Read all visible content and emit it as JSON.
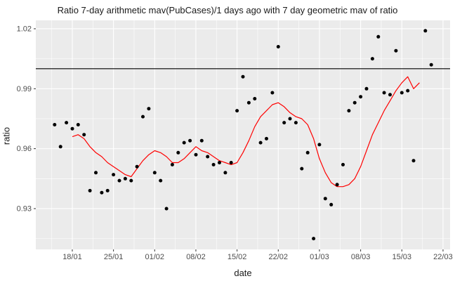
{
  "title": "Ratio 7-day arithmetic mav(PubCases)/1 days ago with 7 day geometric mav of ratio",
  "chart_data": {
    "type": "scatter",
    "title": "Ratio 7-day arithmetic mav(PubCases)/1 days ago with 7 day geometric mav of ratio",
    "xlabel": "date",
    "ylabel": "ratio",
    "x_origin_date": "15/01",
    "xlim": [
      -3.2,
      67.2
    ],
    "ylim": [
      0.9096,
      1.0242
    ],
    "x_ticks": [
      {
        "label": "18/01",
        "d": 3
      },
      {
        "label": "25/01",
        "d": 10
      },
      {
        "label": "01/02",
        "d": 17
      },
      {
        "label": "08/02",
        "d": 24
      },
      {
        "label": "15/02",
        "d": 31
      },
      {
        "label": "22/02",
        "d": 38
      },
      {
        "label": "01/03",
        "d": 45
      },
      {
        "label": "08/03",
        "d": 52
      },
      {
        "label": "15/03",
        "d": 59
      },
      {
        "label": "22/03",
        "d": 66
      }
    ],
    "y_ticks": [
      {
        "label": "0.93",
        "v": 0.93
      },
      {
        "label": "0.96",
        "v": 0.96
      },
      {
        "label": "0.99",
        "v": 0.99
      },
      {
        "label": "1.02",
        "v": 1.02
      }
    ],
    "reference_hline": 1.0,
    "points": [
      [
        0,
        0.972
      ],
      [
        1,
        0.961
      ],
      [
        2,
        0.973
      ],
      [
        3,
        0.97
      ],
      [
        4,
        0.972
      ],
      [
        5,
        0.967
      ],
      [
        6,
        0.939
      ],
      [
        7,
        0.948
      ],
      [
        8,
        0.938
      ],
      [
        9,
        0.939
      ],
      [
        10,
        0.947
      ],
      [
        11,
        0.944
      ],
      [
        12,
        0.945
      ],
      [
        13,
        0.944
      ],
      [
        14,
        0.951
      ],
      [
        15,
        0.976
      ],
      [
        16,
        0.98
      ],
      [
        17,
        0.948
      ],
      [
        18,
        0.944
      ],
      [
        19,
        0.93
      ],
      [
        20,
        0.952
      ],
      [
        21,
        0.958
      ],
      [
        22,
        0.963
      ],
      [
        23,
        0.964
      ],
      [
        24,
        0.957
      ],
      [
        25,
        0.964
      ],
      [
        26,
        0.956
      ],
      [
        27,
        0.952
      ],
      [
        28,
        0.953
      ],
      [
        29,
        0.948
      ],
      [
        30,
        0.953
      ],
      [
        31,
        0.979
      ],
      [
        32,
        0.996
      ],
      [
        33,
        0.983
      ],
      [
        34,
        0.985
      ],
      [
        35,
        0.963
      ],
      [
        36,
        0.965
      ],
      [
        37,
        0.988
      ],
      [
        38,
        1.011
      ],
      [
        39,
        0.973
      ],
      [
        40,
        0.975
      ],
      [
        41,
        0.973
      ],
      [
        42,
        0.95
      ],
      [
        43,
        0.958
      ],
      [
        44,
        0.915
      ],
      [
        45,
        0.962
      ],
      [
        46,
        0.935
      ],
      [
        47,
        0.932
      ],
      [
        48,
        0.942
      ],
      [
        49,
        0.952
      ],
      [
        50,
        0.979
      ],
      [
        51,
        0.983
      ],
      [
        52,
        0.986
      ],
      [
        53,
        0.99
      ],
      [
        54,
        1.005
      ],
      [
        55,
        1.016
      ],
      [
        56,
        0.988
      ],
      [
        57,
        0.987
      ],
      [
        58,
        1.009
      ],
      [
        59,
        0.988
      ],
      [
        60,
        0.989
      ],
      [
        61,
        0.954
      ],
      [
        63,
        1.019
      ],
      [
        64,
        1.002
      ]
    ],
    "mav_line": {
      "name": "7 day geometric moving average of ratio",
      "start_day": 3,
      "values": [
        0.966,
        0.967,
        0.965,
        0.961,
        0.958,
        0.956,
        0.953,
        0.951,
        0.949,
        0.947,
        0.946,
        0.95,
        0.954,
        0.957,
        0.959,
        0.958,
        0.956,
        0.953,
        0.953,
        0.955,
        0.958,
        0.961,
        0.959,
        0.958,
        0.956,
        0.954,
        0.953,
        0.952,
        0.953,
        0.958,
        0.964,
        0.971,
        0.976,
        0.979,
        0.982,
        0.983,
        0.981,
        0.978,
        0.976,
        0.975,
        0.972,
        0.965,
        0.955,
        0.948,
        0.943,
        0.941,
        0.941,
        0.942,
        0.945,
        0.951,
        0.959,
        0.967,
        0.973,
        0.979,
        0.984,
        0.989,
        0.993,
        0.996,
        0.99,
        0.993
      ]
    },
    "legend": "none",
    "grid": "on",
    "colors": {
      "panel_background": "#EBEBEB",
      "grid_major": "#FFFFFF",
      "grid_minor": "#FFFFFF",
      "points": "#000000",
      "mav_line": "#FF0000",
      "reference_line": "#000000",
      "tick_label": "#4D4D4D",
      "tick_mark": "#333333"
    }
  }
}
